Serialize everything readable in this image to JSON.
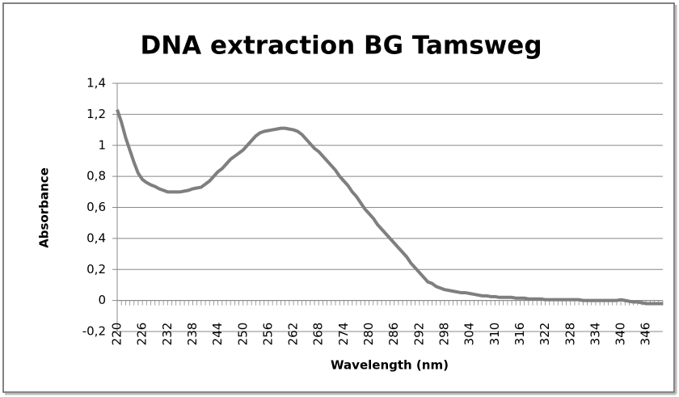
{
  "chart_data": {
    "type": "line",
    "title": "DNA extraction BG Tamsweg",
    "x_label": "Wavelength (nm)",
    "y_label": "Absorbance",
    "categories": [
      "220",
      null,
      null,
      null,
      null,
      null,
      "226",
      null,
      null,
      null,
      null,
      null,
      "232",
      null,
      null,
      null,
      null,
      null,
      "238",
      null,
      null,
      null,
      null,
      null,
      "244",
      null,
      null,
      null,
      null,
      null,
      "250",
      null,
      null,
      null,
      null,
      null,
      "256",
      null,
      null,
      null,
      null,
      null,
      "262",
      null,
      null,
      null,
      null,
      null,
      "268",
      null,
      null,
      null,
      null,
      null,
      "274",
      null,
      null,
      null,
      null,
      null,
      "280",
      null,
      null,
      null,
      null,
      null,
      "286",
      null,
      null,
      null,
      null,
      null,
      "292",
      null,
      null,
      null,
      null,
      null,
      "298",
      null,
      null,
      null,
      null,
      null,
      "304",
      null,
      null,
      null,
      null,
      null,
      "310",
      null,
      null,
      null,
      null,
      null,
      "316",
      null,
      null,
      null,
      null,
      null,
      "322",
      null,
      null,
      null,
      null,
      null,
      "328",
      null,
      null,
      null,
      null,
      null,
      "334",
      null,
      null,
      null,
      null,
      null,
      "340",
      null,
      null,
      null,
      null,
      null,
      "346",
      null,
      null,
      null,
      null
    ],
    "series": [
      {
        "name": "Absorbance",
        "color": "#7f7f7f",
        "values": [
          1.23,
          1.15,
          1.05,
          0.97,
          0.89,
          0.82,
          0.78,
          0.76,
          0.745,
          0.735,
          0.72,
          0.71,
          0.7,
          0.7,
          0.7,
          0.7,
          0.705,
          0.71,
          0.72,
          0.725,
          0.73,
          0.75,
          0.77,
          0.8,
          0.83,
          0.85,
          0.88,
          0.91,
          0.93,
          0.95,
          0.97,
          1.0,
          1.03,
          1.06,
          1.08,
          1.09,
          1.095,
          1.1,
          1.105,
          1.11,
          1.11,
          1.105,
          1.1,
          1.09,
          1.07,
          1.04,
          1.01,
          0.98,
          0.96,
          0.93,
          0.9,
          0.87,
          0.84,
          0.8,
          0.77,
          0.74,
          0.7,
          0.67,
          0.63,
          0.59,
          0.56,
          0.53,
          0.49,
          0.46,
          0.43,
          0.4,
          0.37,
          0.34,
          0.31,
          0.28,
          0.24,
          0.21,
          0.18,
          0.15,
          0.12,
          0.11,
          0.09,
          0.08,
          0.07,
          0.065,
          0.06,
          0.055,
          0.05,
          0.05,
          0.045,
          0.04,
          0.035,
          0.03,
          0.03,
          0.025,
          0.025,
          0.02,
          0.02,
          0.02,
          0.02,
          0.015,
          0.015,
          0.015,
          0.01,
          0.01,
          0.01,
          0.01,
          0.005,
          0.005,
          0.005,
          0.005,
          0.005,
          0.005,
          0.005,
          0.005,
          0.005,
          0,
          0,
          0,
          0,
          0,
          0,
          0,
          0,
          0,
          0.005,
          0,
          -0.005,
          -0.01,
          -0.01,
          -0.015,
          -0.02,
          -0.02,
          -0.02,
          -0.02,
          -0.02
        ]
      }
    ],
    "ylim": [
      -0.2,
      1.4
    ],
    "yticks": [
      {
        "value": -0.2,
        "label": "-0,2"
      },
      0,
      {
        "value": 0.2,
        "label": "0,2"
      },
      {
        "value": 0.4,
        "label": "0,4"
      },
      {
        "value": 0.6,
        "label": "0,6"
      },
      {
        "value": 0.8,
        "label": "0,8"
      },
      1,
      {
        "value": 1.2,
        "label": "1,2"
      },
      {
        "value": 1.4,
        "label": "1,4"
      }
    ],
    "grid": true
  }
}
